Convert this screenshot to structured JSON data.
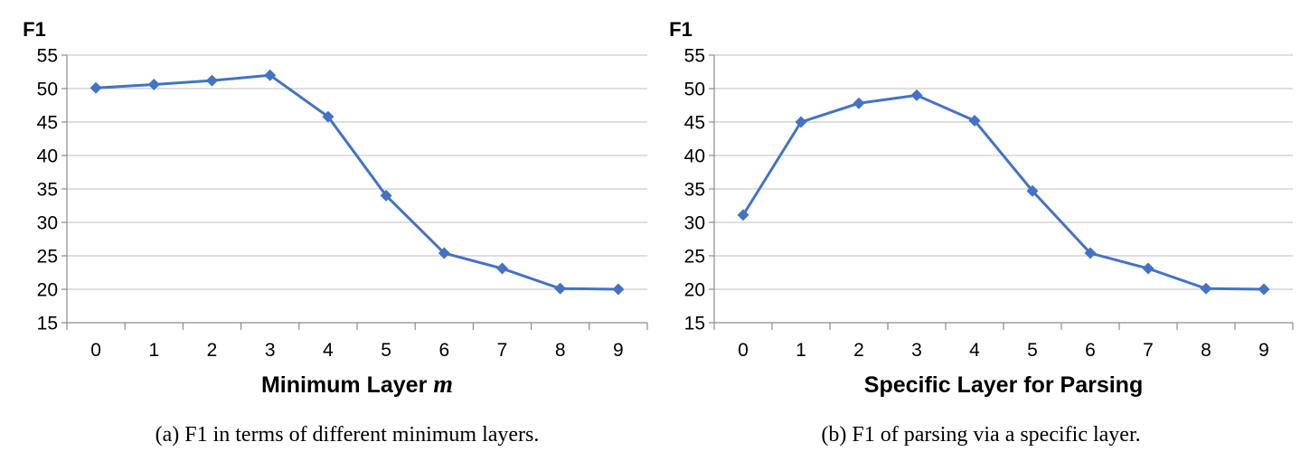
{
  "chart_data": [
    {
      "type": "line",
      "ylabel": "F1",
      "xlabel_text": "Minimum Layer ",
      "xlabel_var": "m",
      "caption": "(a)  F1 in terms of different minimum layers.",
      "categories": [
        "0",
        "1",
        "2",
        "3",
        "4",
        "5",
        "6",
        "7",
        "8",
        "9"
      ],
      "yticks": [
        15,
        20,
        25,
        30,
        35,
        40,
        45,
        50,
        55
      ],
      "ylim": [
        15,
        55
      ],
      "grid": true,
      "series": [
        {
          "name": "F1",
          "color": "#4472c4",
          "values": [
            50.1,
            50.6,
            51.2,
            52.0,
            45.8,
            34.0,
            25.4,
            23.1,
            20.1,
            20.0
          ]
        }
      ]
    },
    {
      "type": "line",
      "ylabel": "F1",
      "xlabel_text": "Specific Layer for Parsing",
      "xlabel_var": "",
      "caption": "(b)  F1 of parsing via a specific layer.",
      "categories": [
        "0",
        "1",
        "2",
        "3",
        "4",
        "5",
        "6",
        "7",
        "8",
        "9"
      ],
      "yticks": [
        15,
        20,
        25,
        30,
        35,
        40,
        45,
        50,
        55
      ],
      "ylim": [
        15,
        55
      ],
      "grid": true,
      "series": [
        {
          "name": "F1",
          "color": "#4472c4",
          "values": [
            31.1,
            45.0,
            47.8,
            49.0,
            45.2,
            34.7,
            25.4,
            23.1,
            20.1,
            20.0
          ]
        }
      ]
    }
  ]
}
